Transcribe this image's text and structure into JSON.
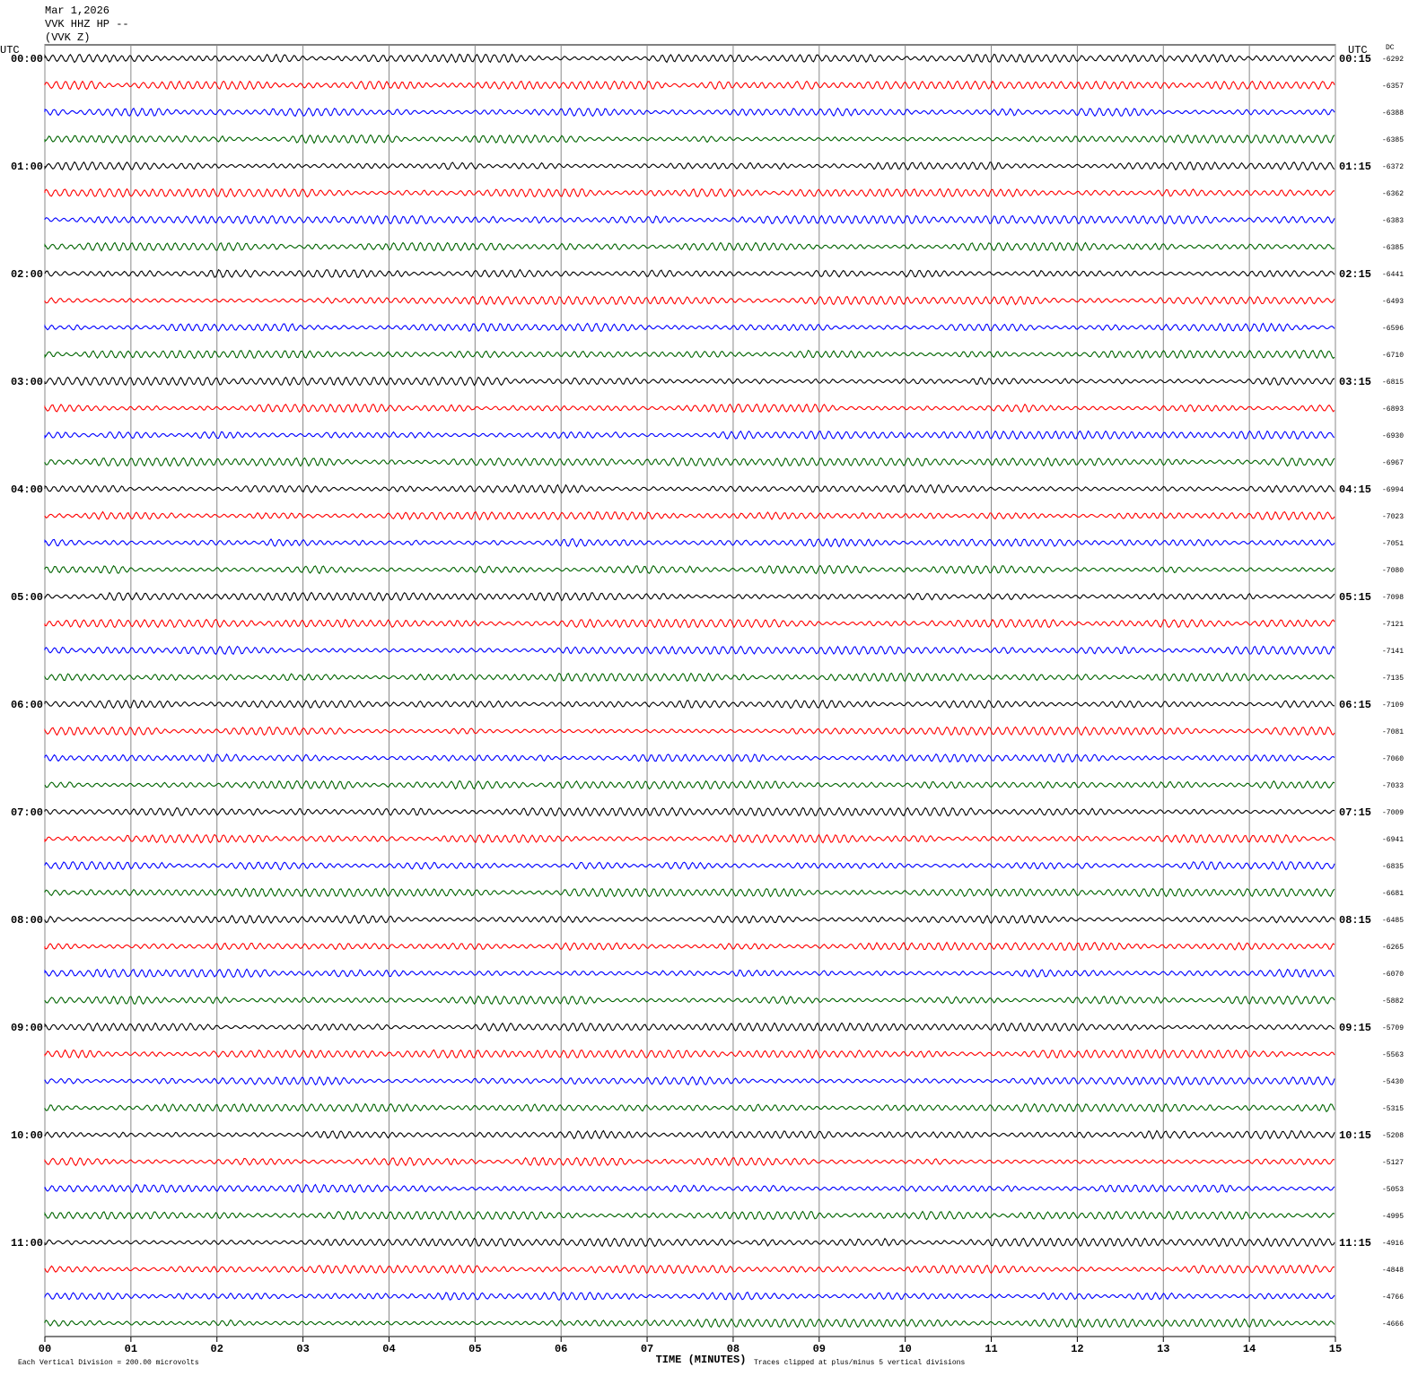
{
  "chart_data": {
    "type": "helicorder",
    "title_lines": [
      "Mar 1,2026",
      "VVK HHZ HP --",
      "(VVK Z)"
    ],
    "left_axis_label": "UTC",
    "right_axis_label": "UTC",
    "dc_label": "DC",
    "left_labels": [
      "00:00",
      "01:00",
      "02:00",
      "03:00",
      "04:00",
      "05:00",
      "06:00",
      "07:00",
      "08:00",
      "09:00",
      "10:00",
      "11:00"
    ],
    "right_labels": [
      "00:15",
      "01:15",
      "02:15",
      "03:15",
      "04:15",
      "05:15",
      "06:15",
      "07:15",
      "08:15",
      "09:15",
      "10:15",
      "11:15"
    ],
    "dc_values": [
      -6292,
      -6357,
      -6388,
      -6385,
      -6372,
      -6362,
      -6383,
      -6385,
      -6441,
      -6493,
      -6596,
      -6710,
      -6815,
      -6893,
      -6930,
      -6967,
      -6994,
      -7023,
      -7051,
      -7080,
      -7098,
      -7121,
      -7141,
      -7135,
      -7109,
      -7081,
      -7060,
      -7033,
      -7009,
      -6941,
      -6835,
      -6681,
      -6485,
      -6265,
      -6070,
      -5882,
      -5709,
      -5563,
      -5430,
      -5315,
      -5208,
      -5127,
      -5053,
      -4995,
      -4916,
      -4848,
      -4766,
      -4666
    ],
    "trace_colors": [
      "#000000",
      "#ff0000",
      "#0000ff",
      "#006400"
    ],
    "xlabel": "TIME (MINUTES)",
    "xlim": [
      0,
      15
    ],
    "xticks": [
      {
        "value": 0,
        "label": "00"
      },
      {
        "value": 1,
        "label": "01"
      },
      {
        "value": 2,
        "label": "02"
      },
      {
        "value": 3,
        "label": "03"
      },
      {
        "value": 4,
        "label": "04"
      },
      {
        "value": 5,
        "label": "05"
      },
      {
        "value": 6,
        "label": "06"
      },
      {
        "value": 7,
        "label": "07"
      },
      {
        "value": 8,
        "label": "08"
      },
      {
        "value": 9,
        "label": "09"
      },
      10,
      11,
      12,
      13,
      14,
      15
    ],
    "grid": true,
    "footer_left": "Each Vertical Division =  200.00 microvolts",
    "footer_right": "Traces clipped at plus/minus 5 vertical divisions"
  }
}
